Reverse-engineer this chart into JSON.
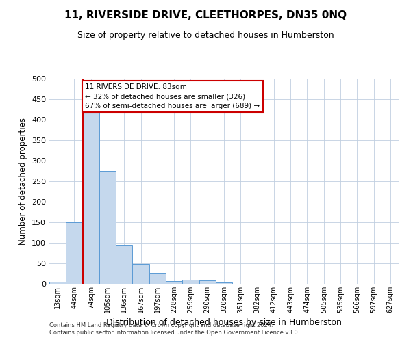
{
  "title": "11, RIVERSIDE DRIVE, CLEETHORPES, DN35 0NQ",
  "subtitle": "Size of property relative to detached houses in Humberston",
  "xlabel": "Distribution of detached houses by size in Humberston",
  "ylabel": "Number of detached properties",
  "bar_color": "#c5d8ed",
  "bar_edge_color": "#5b9bd5",
  "categories": [
    "13sqm",
    "44sqm",
    "74sqm",
    "105sqm",
    "136sqm",
    "167sqm",
    "197sqm",
    "228sqm",
    "259sqm",
    "290sqm",
    "320sqm",
    "351sqm",
    "382sqm",
    "412sqm",
    "443sqm",
    "474sqm",
    "505sqm",
    "535sqm",
    "566sqm",
    "597sqm",
    "627sqm"
  ],
  "values": [
    5,
    150,
    420,
    275,
    95,
    48,
    27,
    6,
    10,
    8,
    3,
    0,
    0,
    0,
    0,
    0,
    0,
    0,
    0,
    0,
    0
  ],
  "ylim": [
    0,
    500
  ],
  "yticks": [
    0,
    50,
    100,
    150,
    200,
    250,
    300,
    350,
    400,
    450,
    500
  ],
  "marker_bar_index": 2,
  "marker_color": "#cc0000",
  "annotation_lines": [
    "11 RIVERSIDE DRIVE: 83sqm",
    "← 32% of detached houses are smaller (326)",
    "67% of semi-detached houses are larger (689) →"
  ],
  "annotation_box_color": "#ffffff",
  "annotation_box_edge": "#cc0000",
  "footnote1": "Contains HM Land Registry data © Crown copyright and database right 2024.",
  "footnote2": "Contains public sector information licensed under the Open Government Licence v3.0.",
  "bg_color": "#ffffff",
  "grid_color": "#c0cfe0"
}
